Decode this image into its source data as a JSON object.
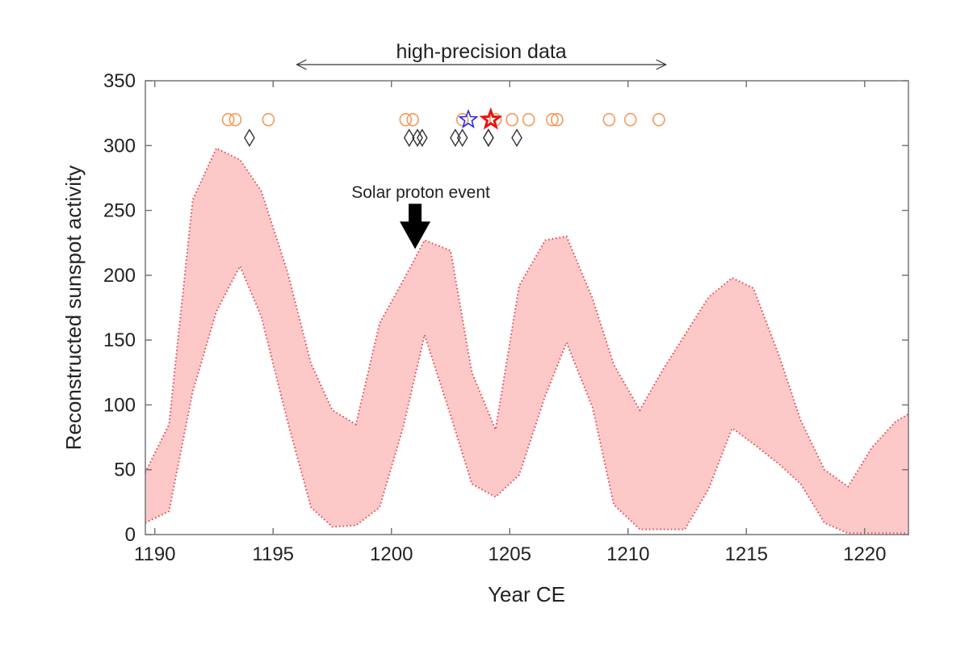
{
  "chart_data": {
    "type": "area",
    "title": "",
    "xlabel": "Year CE",
    "ylabel": "Reconstructed sunspot activity",
    "xlim": [
      1189.6,
      1221.85
    ],
    "ylim": [
      0,
      350
    ],
    "xticks": [
      1190,
      1195,
      1200,
      1205,
      1210,
      1215,
      1220
    ],
    "yticks": [
      0,
      50,
      100,
      150,
      200,
      250,
      300,
      350
    ],
    "grid": false,
    "band": {
      "name": "Reconstructed sunspot range",
      "color": "#fcc8c8",
      "edge_color": "#e8454f",
      "upper": {
        "x": [
          1189.6,
          1190.6,
          1191.6,
          1192.6,
          1193.6,
          1194.5,
          1195.6,
          1196.6,
          1197.5,
          1198.5,
          1199.5,
          1200.5,
          1201.4,
          1202.5,
          1203.4,
          1204.4,
          1205.4,
          1206.5,
          1207.4,
          1208.5,
          1209.4,
          1210.5,
          1211.4,
          1212.4,
          1213.4,
          1214.4,
          1215.3,
          1216.4,
          1217.3,
          1218.3,
          1219.3,
          1220.3,
          1221.3,
          1221.85
        ],
        "y": [
          48,
          85,
          258,
          298,
          289,
          265,
          203,
          132,
          96,
          85,
          163,
          196,
          227,
          219,
          125,
          81,
          192,
          227,
          230,
          182,
          131,
          96,
          125,
          154,
          183,
          198,
          190,
          137,
          88,
          50,
          37,
          67,
          87,
          93
        ]
      },
      "lower": {
        "x": [
          1189.6,
          1190.6,
          1191.6,
          1192.6,
          1193.6,
          1194.5,
          1195.6,
          1196.6,
          1197.5,
          1198.5,
          1199.5,
          1200.5,
          1201.4,
          1202.5,
          1203.4,
          1204.4,
          1205.4,
          1206.5,
          1207.4,
          1208.5,
          1209.4,
          1210.5,
          1211.4,
          1212.4,
          1213.4,
          1214.4,
          1215.3,
          1216.4,
          1217.3,
          1218.3,
          1219.3,
          1220.3,
          1221.85
        ],
        "y": [
          9,
          18,
          110,
          172,
          207,
          168,
          88,
          21,
          6,
          7,
          21,
          83,
          154,
          92,
          39,
          29,
          46,
          107,
          148,
          98,
          23,
          4,
          4,
          4,
          35,
          82,
          70,
          54,
          39,
          9,
          1,
          1,
          1
        ]
      }
    },
    "markers": [
      {
        "name": "circles",
        "shape": "circle",
        "color": "#f39a5a",
        "y": 320,
        "x": [
          1193.1,
          1193.4,
          1194.8,
          1200.6,
          1200.9,
          1203.0,
          1204.4,
          1205.1,
          1205.8,
          1206.8,
          1207.0,
          1209.2,
          1210.1,
          1211.3
        ]
      },
      {
        "name": "diamonds",
        "shape": "diamond",
        "color": "#333333",
        "y": 306,
        "x": [
          1194.0,
          1200.75,
          1201.1,
          1201.3,
          1202.7,
          1203.0,
          1204.1,
          1204.1,
          1205.3
        ]
      },
      {
        "name": "blue-star",
        "shape": "star",
        "color": "#2a2af0",
        "y": 320,
        "x": [
          1203.25
        ]
      },
      {
        "name": "red-star",
        "shape": "star",
        "color": "#f01010",
        "y": 320,
        "x": [
          1204.2
        ]
      }
    ],
    "annotations": [
      {
        "text": "high-precision data",
        "type": "double-arrow",
        "x_range": [
          1196.0,
          1211.6
        ]
      },
      {
        "text": "Solar proton event",
        "type": "down-arrow",
        "x": 1201.0,
        "y": 219
      }
    ]
  }
}
